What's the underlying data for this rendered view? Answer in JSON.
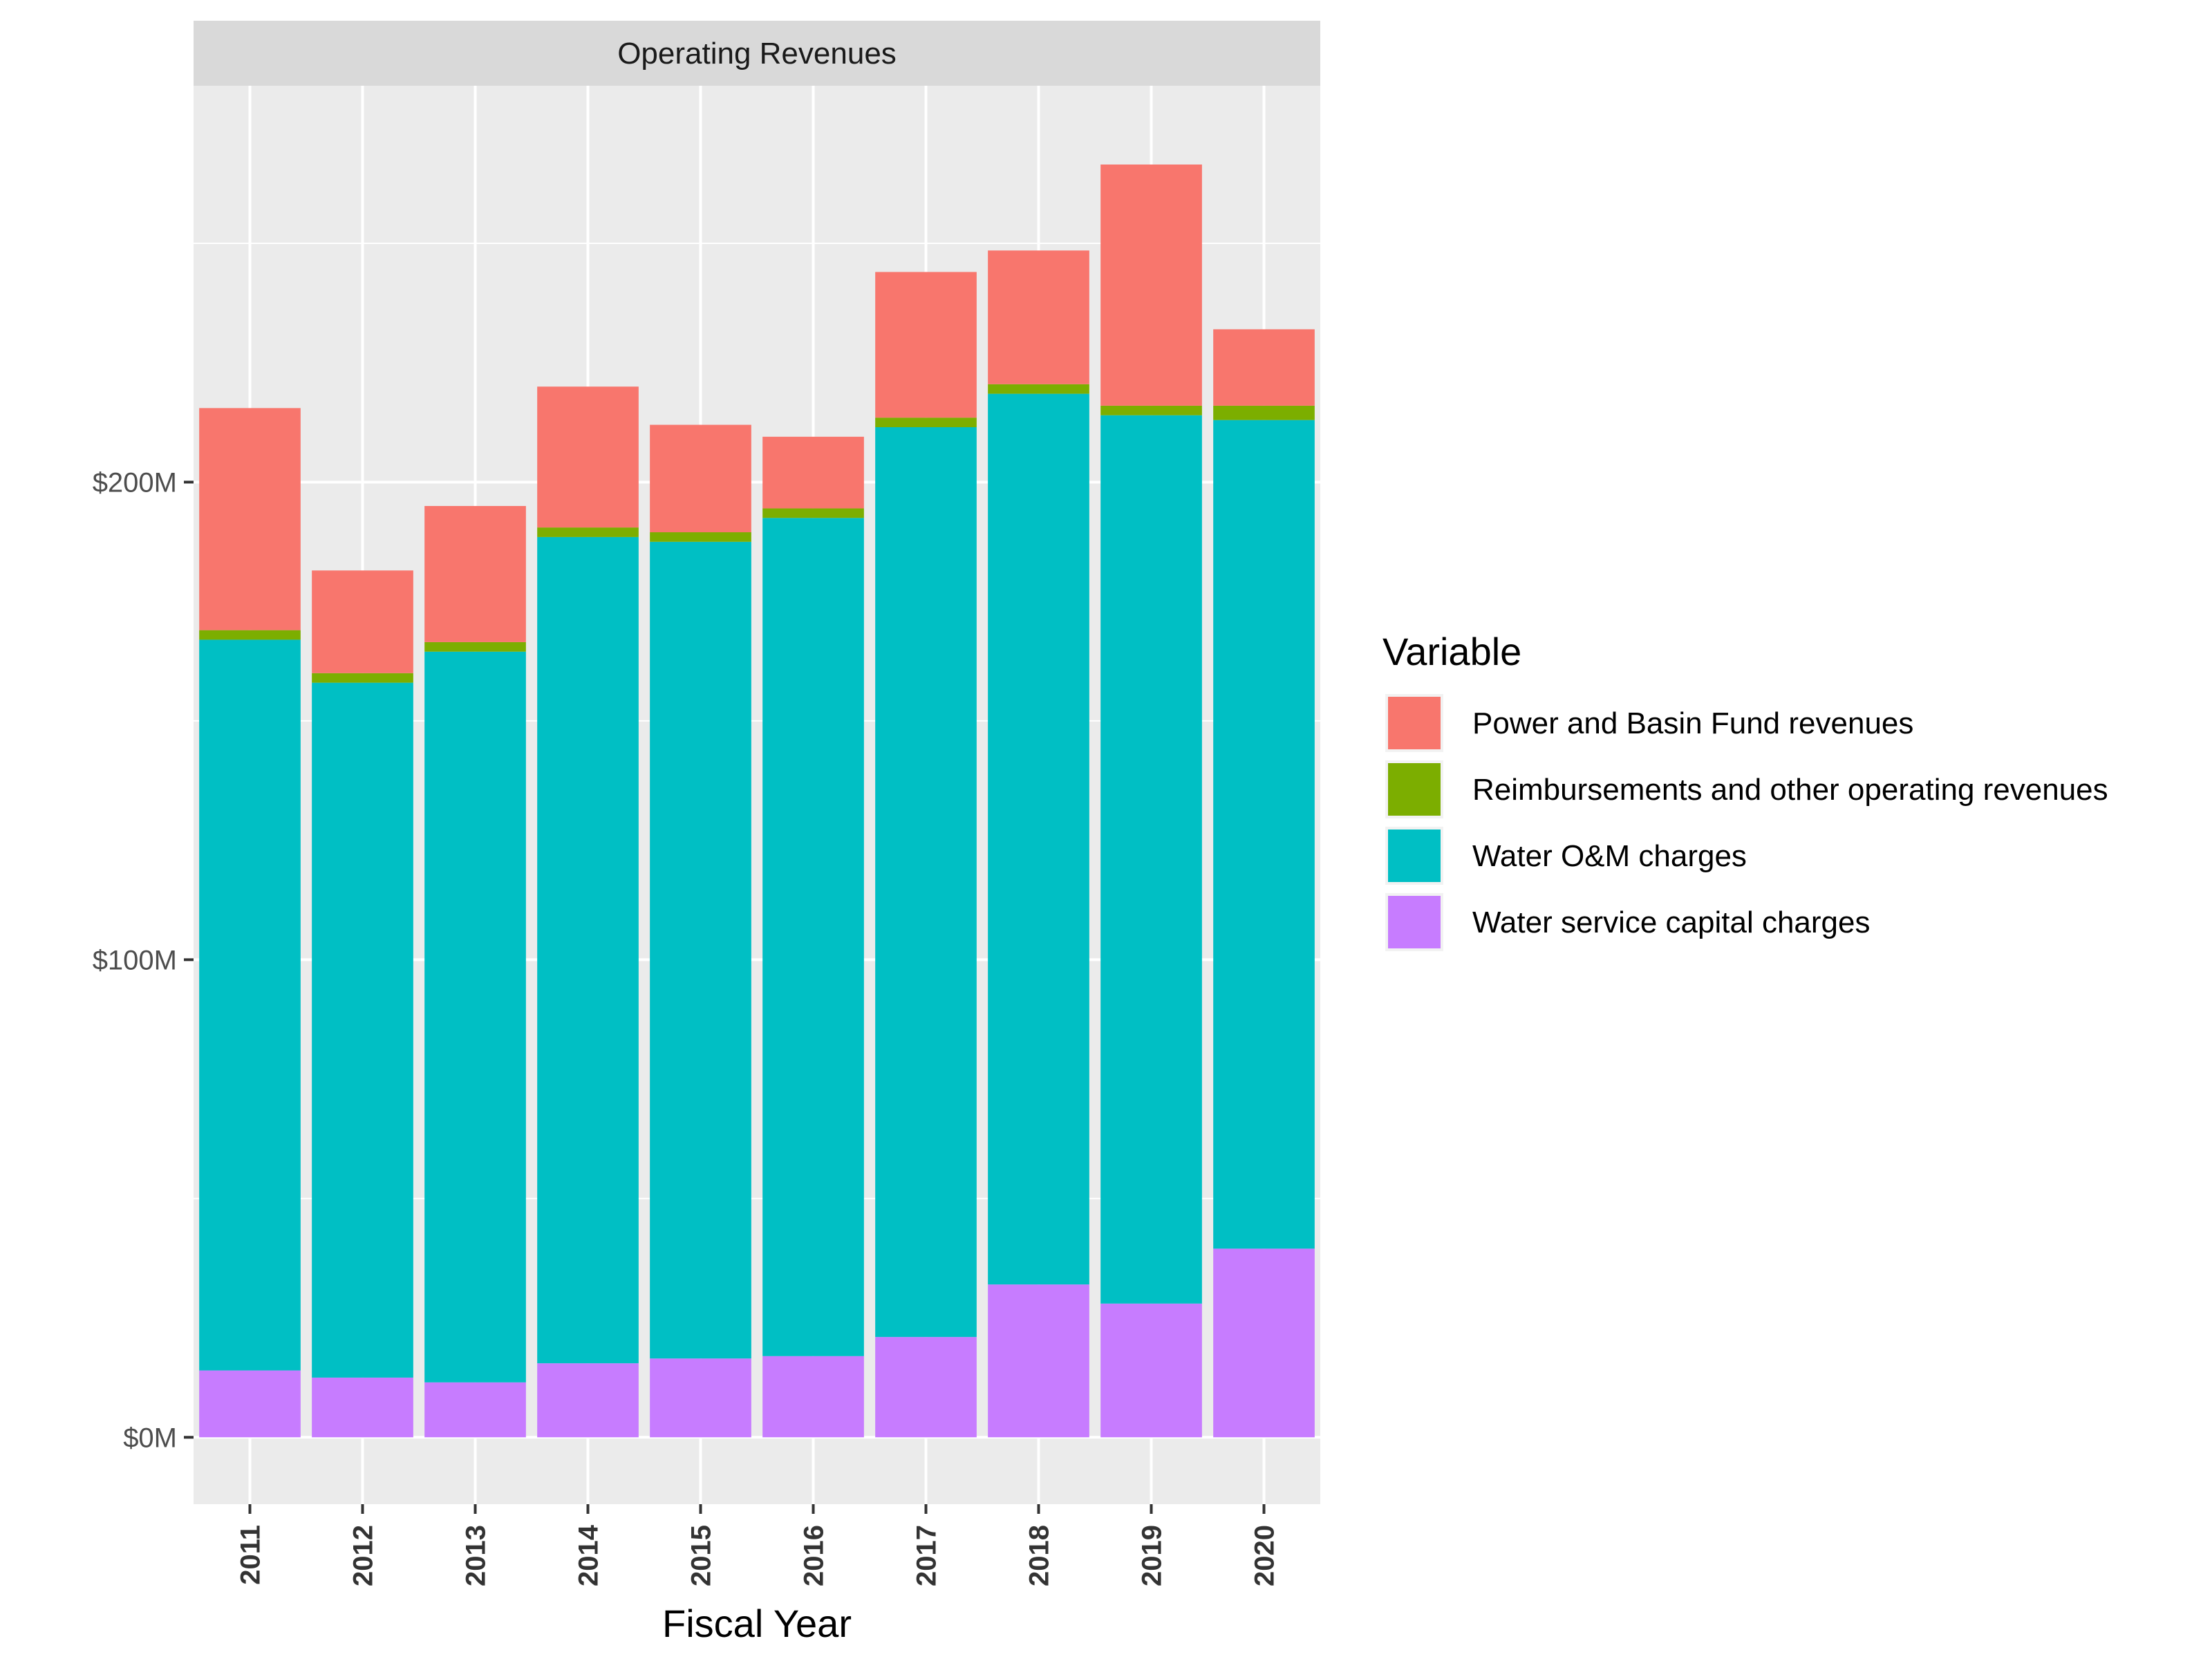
{
  "chart_data": {
    "type": "bar",
    "stacked": true,
    "facet_title": "Operating Revenues",
    "xlabel": "Fiscal Year",
    "ylabel": "",
    "categories": [
      "2011",
      "2012",
      "2013",
      "2014",
      "2015",
      "2016",
      "2017",
      "2018",
      "2019",
      "2020"
    ],
    "ylim": [
      -14,
      283
    ],
    "yticks": [
      0,
      100,
      200
    ],
    "ytick_labels": [
      "$0M",
      "$100M",
      "$200M"
    ],
    "grid": true,
    "legend_position": "right",
    "legend_title": "Variable",
    "legend_order": [
      "Power and Basin Fund revenues",
      "Reimbursements and other operating revenues",
      "Water O&M charges",
      "Water service capital charges"
    ],
    "stack_order": [
      "Water service capital charges",
      "Water O&M charges",
      "Reimbursements and other operating revenues",
      "Power and Basin Fund revenues"
    ],
    "series": [
      {
        "name": "Water service capital charges",
        "color": "#C77CFF",
        "values": [
          14,
          12.5,
          11.5,
          15.5,
          16.5,
          17,
          21,
          32,
          28,
          39.5
        ]
      },
      {
        "name": "Water O&M charges",
        "color": "#00BFC4",
        "values": [
          153,
          145.5,
          153,
          173,
          171,
          175.5,
          190.5,
          186.5,
          186,
          173.5
        ]
      },
      {
        "name": "Reimbursements and other operating revenues",
        "color": "#7CAE00",
        "values": [
          2,
          2,
          2,
          2,
          2,
          2,
          2,
          2,
          2,
          3
        ]
      },
      {
        "name": "Power and Basin Fund revenues",
        "color": "#F8766D",
        "values": [
          46.5,
          21.5,
          28.5,
          29.5,
          22.5,
          15,
          30.5,
          28,
          50.5,
          16
        ]
      }
    ]
  }
}
